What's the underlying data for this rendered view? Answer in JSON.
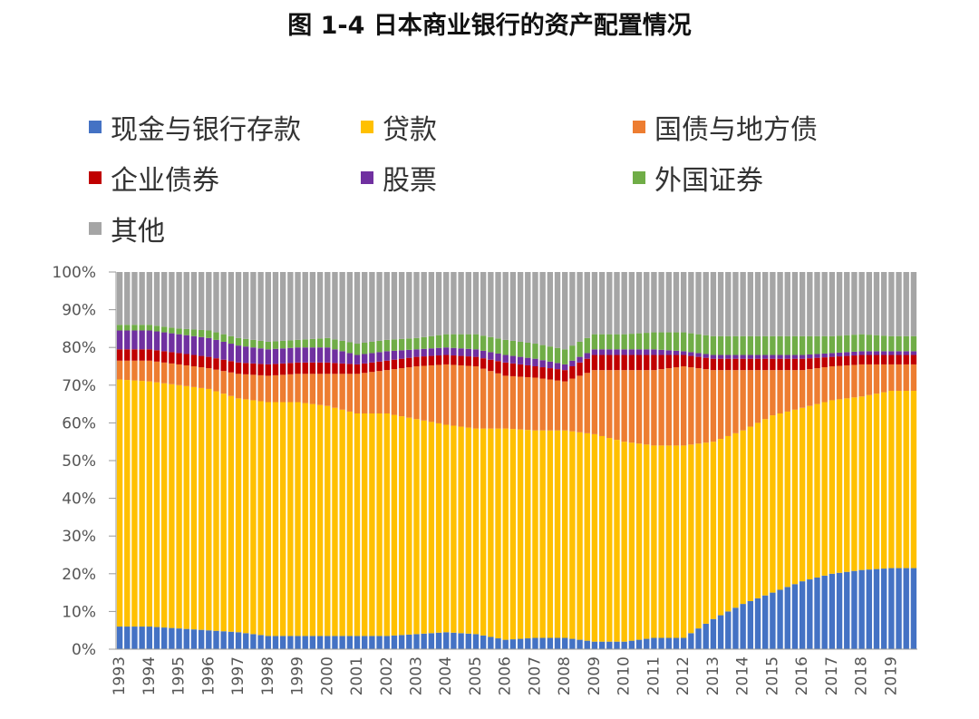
{
  "title": "图 1-4 日本商业银行的资产配置情况",
  "chart_data": {
    "type": "bar",
    "stacked": true,
    "title": "图 1-4 日本商业银行的资产配置情况",
    "xlabel": "",
    "ylabel": "",
    "ylim": [
      0,
      100
    ],
    "y_ticks": [
      "0%",
      "10%",
      "20%",
      "30%",
      "40%",
      "50%",
      "60%",
      "70%",
      "80%",
      "90%",
      "100%"
    ],
    "x_ticks": [
      "1993",
      "1994",
      "1995",
      "1996",
      "1997",
      "1998",
      "1999",
      "2000",
      "2001",
      "2002",
      "2003",
      "2004",
      "2005",
      "2006",
      "2007",
      "2008",
      "2009",
      "2010",
      "2011",
      "2012",
      "2013",
      "2014",
      "2015",
      "2016",
      "2017",
      "2018",
      "2019"
    ],
    "legend_position": "top",
    "grid": false,
    "categories": [
      "1993",
      "1994",
      "1995",
      "1996",
      "1997",
      "1998",
      "1999",
      "2000",
      "2001",
      "2002",
      "2003",
      "2004",
      "2005",
      "2006",
      "2007",
      "2008",
      "2009",
      "2010",
      "2011",
      "2012",
      "2013",
      "2014",
      "2015",
      "2016",
      "2017",
      "2018",
      "2019"
    ],
    "series": [
      {
        "name": "现金与银行存款",
        "color": "#4472C4",
        "values": [
          6,
          6,
          5.5,
          5,
          4.5,
          3.5,
          3.5,
          3.5,
          3.5,
          3.5,
          4,
          4.5,
          4,
          2.5,
          3,
          3,
          2,
          2,
          3,
          3,
          8,
          12,
          15,
          18,
          20,
          21,
          21.5
        ]
      },
      {
        "name": "贷款",
        "color": "#FFC000",
        "values": [
          65.5,
          65,
          64.5,
          64,
          62,
          62,
          62,
          61,
          59,
          59,
          57,
          55,
          54.5,
          56,
          55,
          55,
          55,
          53,
          51,
          51,
          47,
          46,
          47,
          46,
          46,
          46,
          47
        ]
      },
      {
        "name": "国债与地方债",
        "color": "#ED7D31",
        "values": [
          5,
          5.5,
          5.5,
          5.5,
          6.5,
          7,
          7.5,
          8.5,
          10.5,
          11.5,
          14,
          16,
          16.5,
          14,
          14,
          13,
          17,
          19,
          20,
          21,
          19,
          16,
          12,
          10,
          9,
          8.5,
          7
        ]
      },
      {
        "name": "企业债券",
        "color": "#C00000",
        "values": [
          3,
          3,
          3,
          3,
          3,
          3,
          3,
          3,
          2.5,
          2.5,
          2.5,
          2.5,
          2.5,
          3.5,
          3,
          3,
          4,
          4,
          4,
          3,
          3,
          3,
          3,
          3,
          2.5,
          2.5,
          2.5
        ]
      },
      {
        "name": "股票",
        "color": "#7030A0",
        "values": [
          5,
          5,
          5,
          5,
          4.5,
          4,
          4,
          4,
          2.5,
          2.5,
          2,
          2,
          2,
          2,
          2,
          1.5,
          1.5,
          1.5,
          1.5,
          1,
          1,
          1,
          1,
          1,
          1,
          1,
          1
        ]
      },
      {
        "name": "外国证券",
        "color": "#70AD47",
        "values": [
          1.5,
          1.5,
          1.5,
          2,
          2,
          2,
          2,
          2.5,
          3,
          3,
          3,
          3.5,
          4,
          4,
          4,
          4,
          4,
          4,
          4.5,
          5,
          5,
          5,
          5,
          5,
          4.5,
          4.5,
          4
        ]
      },
      {
        "name": "其他",
        "color": "#A5A5A5",
        "values": [
          14,
          14,
          15,
          15.5,
          17.5,
          18.5,
          18,
          17.5,
          19,
          18,
          17.5,
          16.5,
          16.5,
          18,
          19,
          20.5,
          16.5,
          16.5,
          16,
          16,
          17,
          17,
          17,
          17,
          17,
          16.5,
          17
        ]
      }
    ]
  }
}
